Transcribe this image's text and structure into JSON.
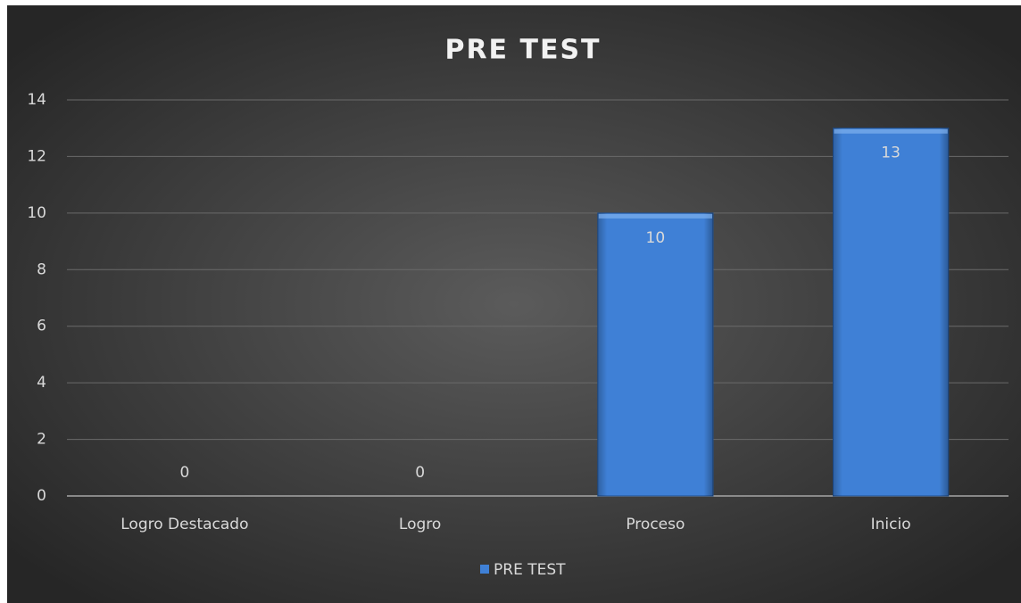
{
  "chart_data": {
    "type": "bar",
    "title": "PRE TEST",
    "categories": [
      "Logro Destacado",
      "Logro",
      "Proceso",
      "Inicio"
    ],
    "series": [
      {
        "name": "PRE TEST",
        "color": "#3f80d6",
        "values": [
          0,
          0,
          10,
          13
        ]
      }
    ],
    "ylim": [
      0,
      14
    ],
    "yticks": [
      0,
      2,
      4,
      6,
      8,
      10,
      12,
      14
    ],
    "grid": true,
    "legend": "bottom"
  }
}
